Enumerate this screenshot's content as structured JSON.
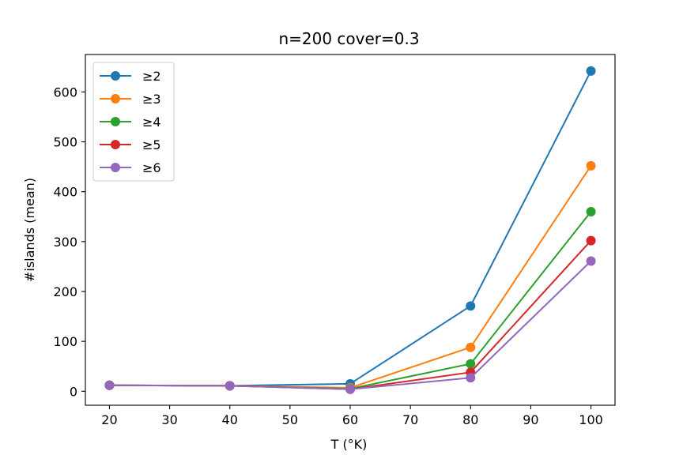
{
  "chart_data": {
    "type": "line",
    "title": "n=200 cover=0.3",
    "xlabel": "T (°K)",
    "ylabel": "#islands (mean)",
    "x": [
      20,
      40,
      60,
      80,
      100
    ],
    "xlim": [
      16,
      104
    ],
    "ylim": [
      -28,
      675
    ],
    "xticks": [
      20,
      30,
      40,
      50,
      60,
      70,
      80,
      90,
      100
    ],
    "yticks": [
      0,
      100,
      200,
      300,
      400,
      500,
      600
    ],
    "grid": false,
    "legend_position": "upper-left",
    "series": [
      {
        "name": "≥2",
        "color": "#1f77b4",
        "values": [
          12,
          11,
          15,
          171,
          642
        ]
      },
      {
        "name": "≥3",
        "color": "#ff7f0e",
        "values": [
          12,
          11,
          7,
          88,
          452
        ]
      },
      {
        "name": "≥4",
        "color": "#2ca02c",
        "values": [
          12,
          11,
          5,
          55,
          360
        ]
      },
      {
        "name": "≥5",
        "color": "#d62728",
        "values": [
          12,
          11,
          4,
          38,
          302
        ]
      },
      {
        "name": "≥6",
        "color": "#9467bd",
        "values": [
          12,
          11,
          4,
          27,
          261
        ]
      }
    ]
  }
}
